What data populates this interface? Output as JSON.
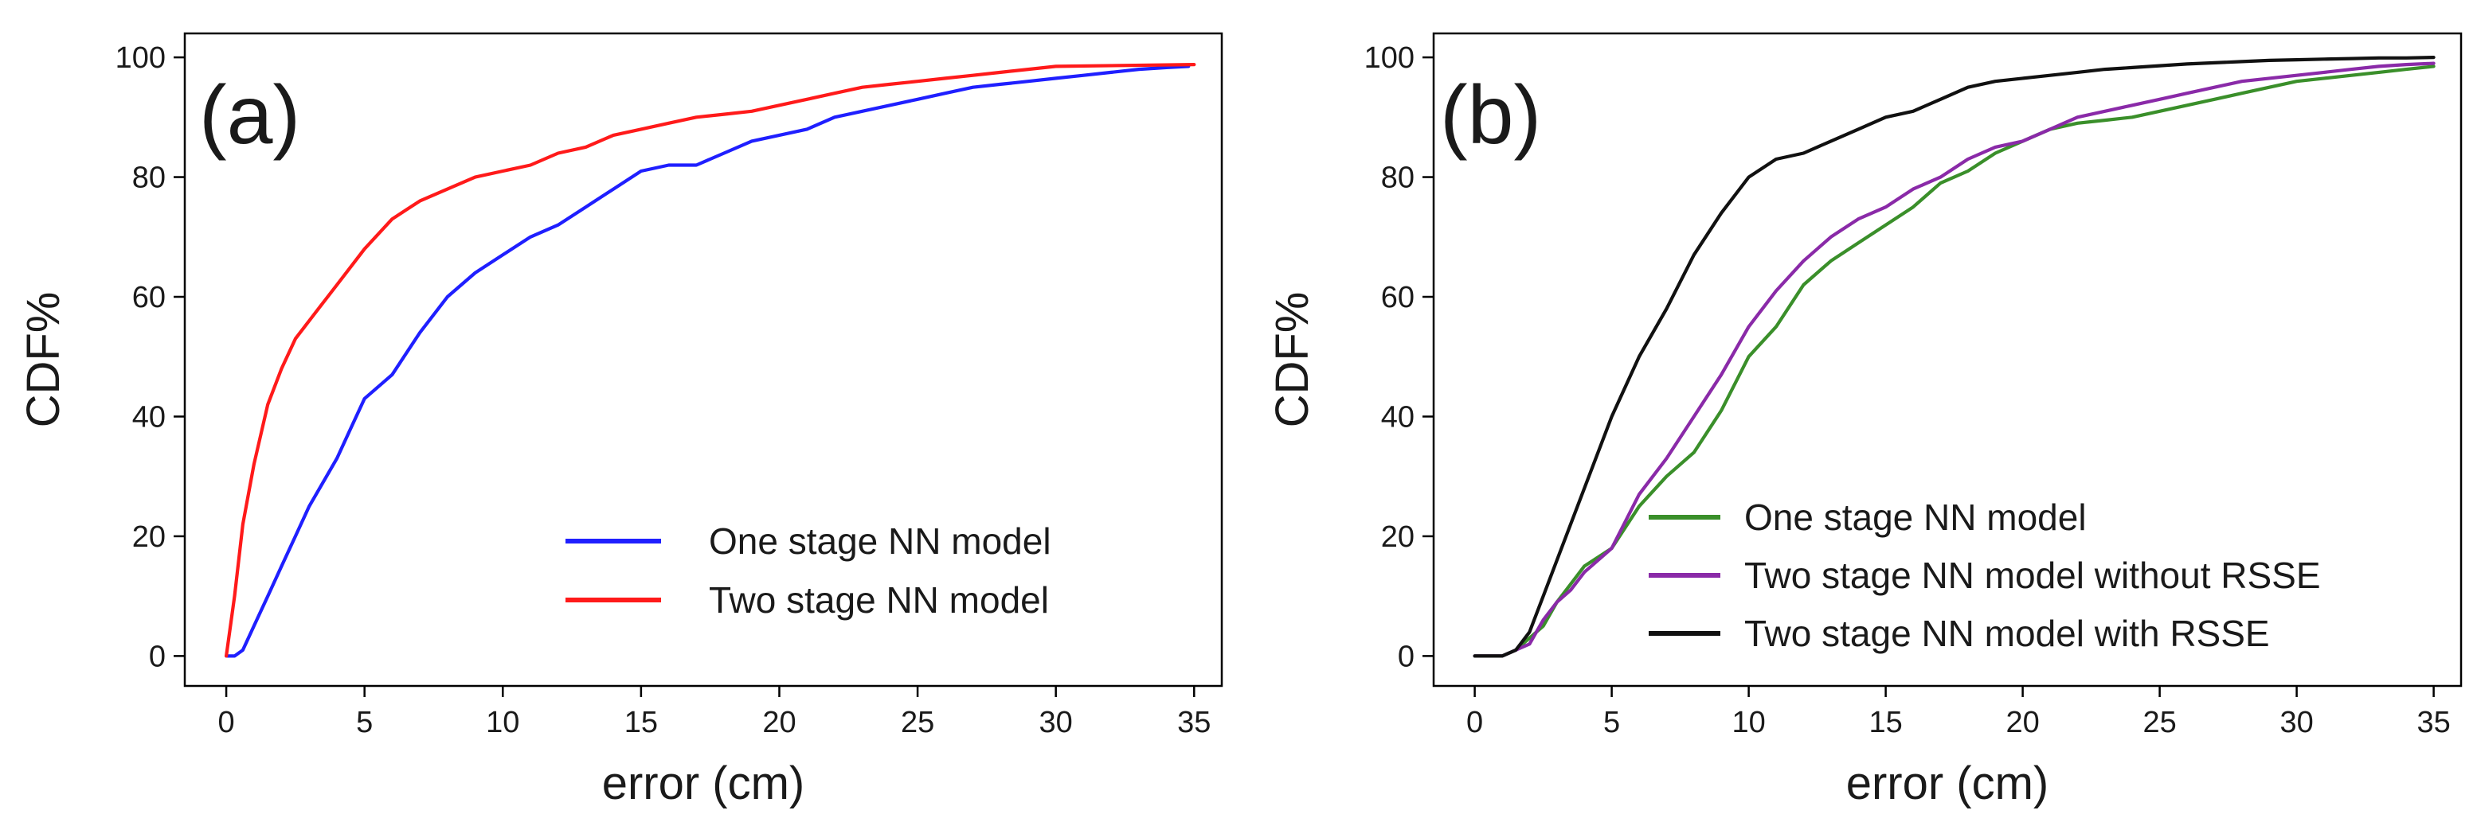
{
  "chart_data": [
    {
      "type": "line",
      "panel_label": "(a)",
      "title": "",
      "xlabel": "error (cm)",
      "ylabel": "CDF%",
      "xlim": [
        -1.5,
        36
      ],
      "ylim": [
        -5,
        104
      ],
      "xticks": [
        0,
        5,
        10,
        15,
        20,
        25,
        30,
        35
      ],
      "yticks": [
        0,
        20,
        40,
        60,
        80,
        100
      ],
      "legend_position": "bottom-right",
      "series": [
        {
          "name": "One stage NN model",
          "color": "#1f1fff",
          "x": [
            0,
            0.3,
            0.6,
            1,
            1.5,
            2,
            2.5,
            3,
            3.5,
            4,
            4.5,
            5,
            6,
            7,
            8,
            9,
            10,
            11,
            12,
            13,
            14,
            15,
            16,
            17,
            18,
            19,
            20,
            21,
            22,
            23,
            24,
            25,
            26,
            27,
            28,
            29,
            30,
            31,
            32,
            33,
            34,
            34.8
          ],
          "y": [
            0,
            0,
            1,
            5,
            10,
            15,
            20,
            25,
            29,
            33,
            38,
            43,
            47,
            54,
            60,
            64,
            67,
            70,
            72,
            75,
            78,
            81,
            82,
            82,
            84,
            86,
            87,
            88,
            90,
            91,
            92,
            93,
            94,
            95,
            95.5,
            96,
            96.5,
            97,
            97.5,
            98,
            98.3,
            98.5
          ]
        },
        {
          "name": "Two stage NN model",
          "color": "#ff1a1a",
          "x": [
            0,
            0.3,
            0.6,
            1,
            1.5,
            2,
            2.5,
            3,
            3.5,
            4,
            5,
            6,
            7,
            8,
            9,
            10,
            11,
            12,
            13,
            14,
            15,
            16,
            17,
            18,
            19,
            20,
            21,
            22,
            23,
            24,
            25,
            26,
            27,
            28,
            29,
            30,
            35
          ],
          "y": [
            0,
            10,
            22,
            32,
            42,
            48,
            53,
            56,
            59,
            62,
            68,
            73,
            76,
            78,
            80,
            81,
            82,
            84,
            85,
            87,
            88,
            89,
            90,
            90.5,
            91,
            92,
            93,
            94,
            95,
            95.5,
            96,
            96.5,
            97,
            97.5,
            98,
            98.5,
            98.8
          ]
        }
      ]
    },
    {
      "type": "line",
      "panel_label": "(b)",
      "title": "",
      "xlabel": "error (cm)",
      "ylabel": "CDF%",
      "xlim": [
        -1.5,
        36
      ],
      "ylim": [
        -5,
        104
      ],
      "xticks": [
        0,
        5,
        10,
        15,
        20,
        25,
        30,
        35
      ],
      "yticks": [
        0,
        20,
        40,
        60,
        80,
        100
      ],
      "legend_position": "bottom-right",
      "series": [
        {
          "name": "One stage NN model",
          "color": "#3a8f2a",
          "x": [
            0,
            0.5,
            1,
            1.5,
            2,
            2.5,
            3,
            3.5,
            4,
            5,
            6,
            7,
            8,
            9,
            10,
            11,
            12,
            13,
            14,
            15,
            16,
            17,
            18,
            19,
            20,
            21,
            22,
            23,
            24,
            25,
            26,
            27,
            28,
            29,
            30,
            31,
            32,
            33,
            34,
            35
          ],
          "y": [
            0,
            0,
            0,
            1,
            3,
            5,
            9,
            12,
            15,
            18,
            25,
            30,
            34,
            41,
            50,
            55,
            62,
            66,
            69,
            72,
            75,
            79,
            81,
            84,
            86,
            88,
            89,
            89.5,
            90,
            91,
            92,
            93,
            94,
            95,
            96,
            96.5,
            97,
            97.5,
            98,
            98.5
          ]
        },
        {
          "name": "Two stage NN model without RSSE",
          "color": "#8a2aa8",
          "x": [
            0,
            0.5,
            1,
            1.5,
            2,
            2.5,
            3,
            3.5,
            4,
            5,
            6,
            7,
            8,
            9,
            10,
            11,
            12,
            13,
            14,
            15,
            16,
            17,
            18,
            19,
            20,
            21,
            22,
            23,
            24,
            25,
            26,
            27,
            28,
            29,
            30,
            31,
            32,
            33,
            34,
            35
          ],
          "y": [
            0,
            0,
            0,
            1,
            2,
            6,
            9,
            11,
            14,
            18,
            27,
            33,
            40,
            47,
            55,
            61,
            66,
            70,
            73,
            75,
            78,
            80,
            83,
            85,
            86,
            88,
            90,
            91,
            92,
            93,
            94,
            95,
            96,
            96.5,
            97,
            97.5,
            98,
            98.5,
            98.8,
            99
          ]
        },
        {
          "name": "Two stage NN model with RSSE",
          "color": "#111111",
          "x": [
            0,
            0.5,
            1,
            1.5,
            2,
            2.5,
            3,
            3.5,
            4,
            4.5,
            5,
            6,
            7,
            8,
            9,
            10,
            11,
            12,
            13,
            14,
            15,
            16,
            17,
            18,
            19,
            20,
            21,
            22,
            23,
            24,
            25,
            26,
            27,
            28,
            29,
            30,
            31,
            32,
            33,
            34,
            35
          ],
          "y": [
            0,
            0,
            0,
            1,
            4,
            10,
            16,
            22,
            28,
            34,
            40,
            50,
            58,
            67,
            74,
            80,
            83,
            84,
            86,
            88,
            90,
            91,
            93,
            95,
            96,
            96.5,
            97,
            97.5,
            98,
            98.3,
            98.6,
            98.9,
            99.1,
            99.3,
            99.5,
            99.6,
            99.7,
            99.8,
            99.9,
            99.9,
            100
          ]
        }
      ]
    }
  ]
}
